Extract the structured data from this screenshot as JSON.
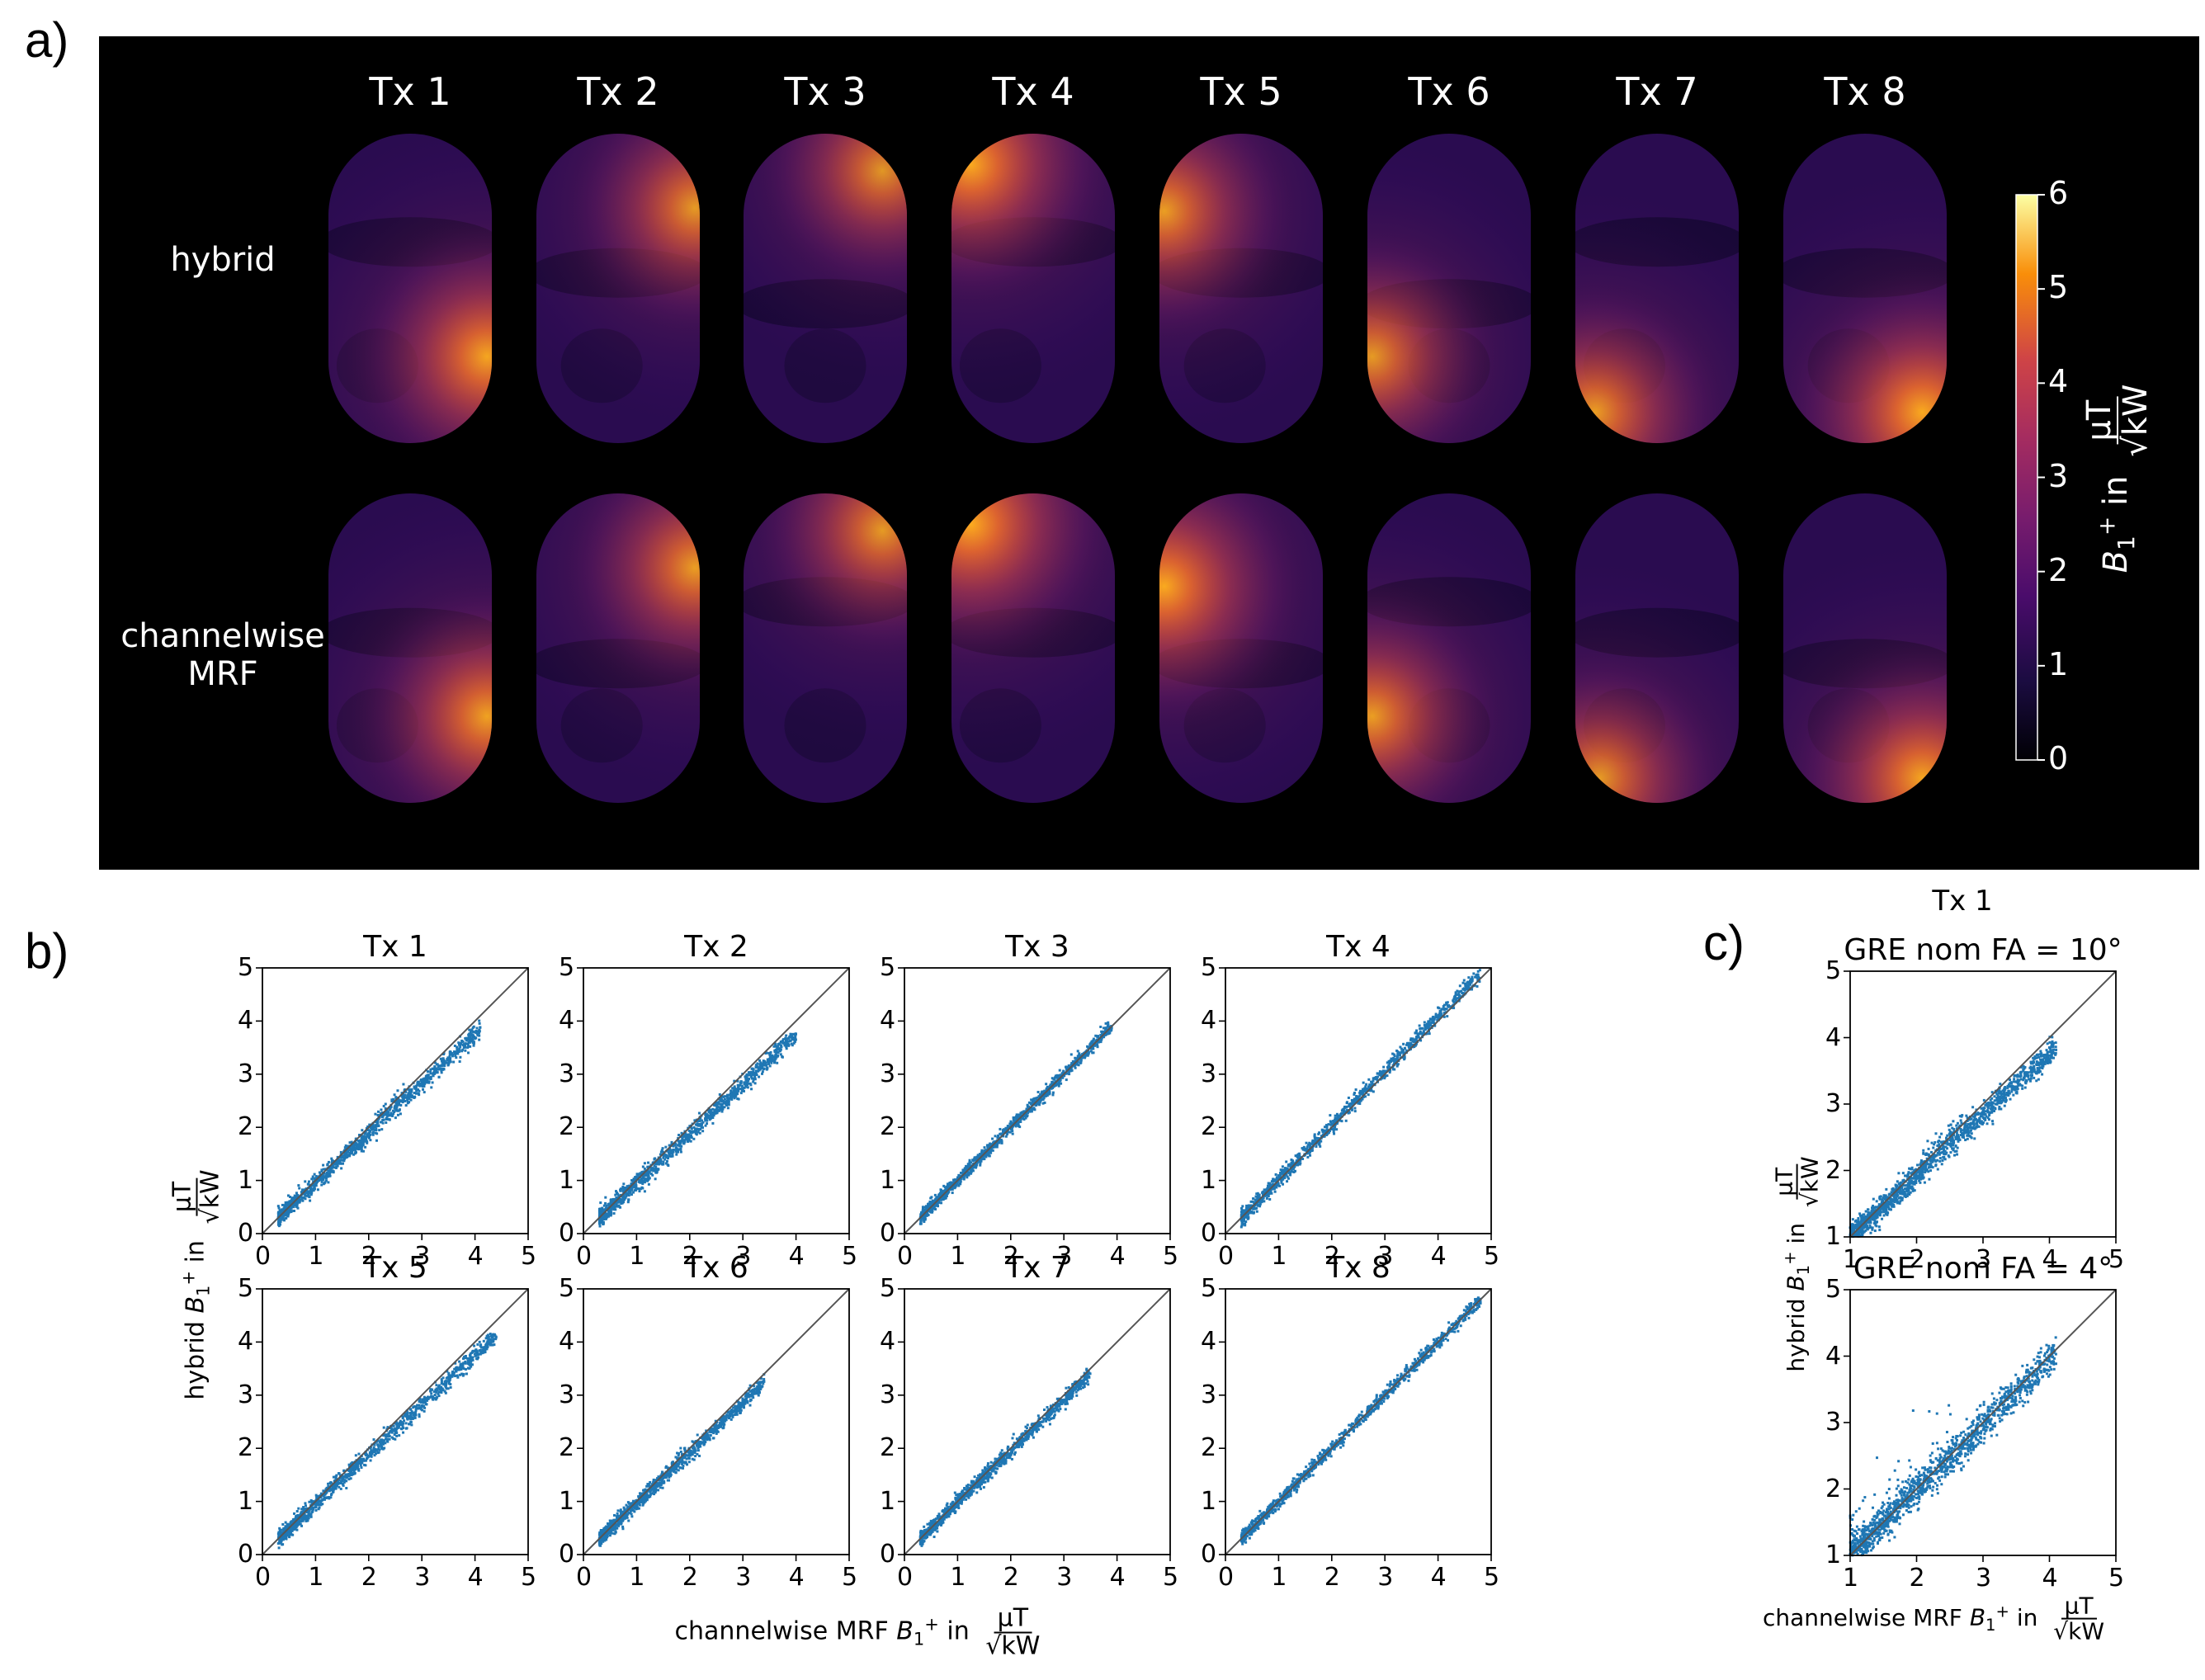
{
  "panel_labels": {
    "a": "a)",
    "b": "b)",
    "c": "c)"
  },
  "panel_a": {
    "columns": [
      "Tx 1",
      "Tx 2",
      "Tx 3",
      "Tx 4",
      "Tx 5",
      "Tx 6",
      "Tx 7",
      "Tx 8"
    ],
    "rows": [
      {
        "label_lines": [
          "hybrid"
        ]
      },
      {
        "label_lines": [
          "channelwise",
          "MRF"
        ]
      }
    ],
    "colormap": "inferno",
    "colorbar": {
      "ticks": [
        "0",
        "1",
        "2",
        "3",
        "4",
        "5",
        "6"
      ],
      "range": [
        0,
        6
      ],
      "label_symbol": "B",
      "label_sub": "1",
      "label_sup": "+",
      "label_in": "in",
      "unit_num": "μT",
      "unit_den": "√kW"
    },
    "hot_spots": [
      [
        {
          "u": 0.97,
          "v": 0.72,
          "s": 5.2
        },
        {
          "u": 0.97,
          "v": 0.24,
          "s": 4.6
        },
        {
          "u": 0.85,
          "v": 0.12,
          "s": 4.4
        },
        {
          "u": 0.12,
          "v": 0.1,
          "s": 5.4
        },
        {
          "u": 0.03,
          "v": 0.25,
          "s": 4.8
        },
        {
          "u": 0.03,
          "v": 0.72,
          "s": 4.6
        },
        {
          "u": 0.12,
          "v": 0.9,
          "s": 4.8
        },
        {
          "u": 0.85,
          "v": 0.9,
          "s": 5.4
        }
      ],
      [
        {
          "u": 0.97,
          "v": 0.72,
          "s": 5.0
        },
        {
          "u": 0.97,
          "v": 0.24,
          "s": 4.8
        },
        {
          "u": 0.85,
          "v": 0.12,
          "s": 4.6
        },
        {
          "u": 0.12,
          "v": 0.1,
          "s": 5.6
        },
        {
          "u": 0.03,
          "v": 0.3,
          "s": 5.4
        },
        {
          "u": 0.03,
          "v": 0.72,
          "s": 4.8
        },
        {
          "u": 0.15,
          "v": 0.92,
          "s": 4.6
        },
        {
          "u": 0.85,
          "v": 0.92,
          "s": 5.2
        }
      ]
    ]
  },
  "panel_b": {
    "xlabel": {
      "prefix": "channelwise MRF",
      "symbol": "B",
      "sub": "1",
      "sup": "+",
      "in": "in",
      "unit_num": "μT",
      "unit_den": "√kW"
    },
    "ylabel": {
      "prefix": "hybrid",
      "symbol": "B",
      "sub": "1",
      "sup": "+",
      "in": "in",
      "unit_num": "μT",
      "unit_den": "√kW"
    },
    "tick_labels": [
      "0",
      "1",
      "2",
      "3",
      "4",
      "5"
    ]
  },
  "panel_c": {
    "header": "Tx 1",
    "xlabel": {
      "prefix": "channelwise MRF",
      "symbol": "B",
      "sub": "1",
      "sup": "+",
      "in": "in",
      "unit_num": "μT",
      "unit_den": "√kW"
    },
    "ylabel": {
      "prefix": "hybrid",
      "symbol": "B",
      "sub": "1",
      "sup": "+",
      "in": "in",
      "unit_num": "μT",
      "unit_den": "√kW"
    },
    "tick_labels": [
      "1",
      "2",
      "3",
      "4",
      "5"
    ]
  },
  "chart_data": [
    {
      "panel": "b",
      "type": "scatter",
      "title": "Tx 1",
      "xlim": [
        0,
        5
      ],
      "ylim": [
        0,
        5
      ],
      "identity_line": true,
      "x_range": [
        0.3,
        4.1
      ],
      "slope": 0.93,
      "spread": 0.08,
      "bulge": {
        "x": [
          2.1,
          2.7
        ],
        "dy": 0.25
      }
    },
    {
      "panel": "b",
      "type": "scatter",
      "title": "Tx 2",
      "xlim": [
        0,
        5
      ],
      "ylim": [
        0,
        5
      ],
      "identity_line": true,
      "x_range": [
        0.3,
        4.0
      ],
      "slope": 0.93,
      "spread": 0.08
    },
    {
      "panel": "b",
      "type": "scatter",
      "title": "Tx 3",
      "xlim": [
        0,
        5
      ],
      "ylim": [
        0,
        5
      ],
      "identity_line": true,
      "x_range": [
        0.3,
        3.9
      ],
      "slope": 1.0,
      "spread": 0.06
    },
    {
      "panel": "b",
      "type": "scatter",
      "title": "Tx 4",
      "xlim": [
        0,
        5
      ],
      "ylim": [
        0,
        5
      ],
      "identity_line": true,
      "x_range": [
        0.3,
        4.8
      ],
      "slope": 1.02,
      "spread": 0.07
    },
    {
      "panel": "b",
      "type": "scatter",
      "title": "Tx 5",
      "xlim": [
        0,
        5
      ],
      "ylim": [
        0,
        5
      ],
      "identity_line": true,
      "x_range": [
        0.3,
        4.4
      ],
      "slope": 0.93,
      "spread": 0.08
    },
    {
      "panel": "b",
      "type": "scatter",
      "title": "Tx 6",
      "xlim": [
        0,
        5
      ],
      "ylim": [
        0,
        5
      ],
      "identity_line": true,
      "x_range": [
        0.3,
        3.4
      ],
      "slope": 0.95,
      "spread": 0.07
    },
    {
      "panel": "b",
      "type": "scatter",
      "title": "Tx 7",
      "xlim": [
        0,
        5
      ],
      "ylim": [
        0,
        5
      ],
      "identity_line": true,
      "x_range": [
        0.3,
        3.5
      ],
      "slope": 0.97,
      "spread": 0.07
    },
    {
      "panel": "b",
      "type": "scatter",
      "title": "Tx 8",
      "xlim": [
        0,
        5
      ],
      "ylim": [
        0,
        5
      ],
      "identity_line": true,
      "x_range": [
        0.3,
        4.8
      ],
      "slope": 1.0,
      "spread": 0.06
    },
    {
      "panel": "c",
      "type": "scatter",
      "title": "GRE nom FA = 10°",
      "xlim": [
        1,
        5
      ],
      "ylim": [
        1,
        5
      ],
      "identity_line": true,
      "x_range": [
        1.0,
        4.1
      ],
      "slope": 0.92,
      "spread": 0.09,
      "bulge": {
        "x": [
          2.1,
          2.7
        ],
        "dy": 0.25
      }
    },
    {
      "panel": "c",
      "type": "scatter",
      "title": "GRE nom FA = 4°",
      "xlim": [
        1,
        5
      ],
      "ylim": [
        1,
        5
      ],
      "identity_line": true,
      "x_range": [
        1.0,
        4.1
      ],
      "slope": 0.98,
      "spread": 0.13,
      "outliers": true
    }
  ]
}
